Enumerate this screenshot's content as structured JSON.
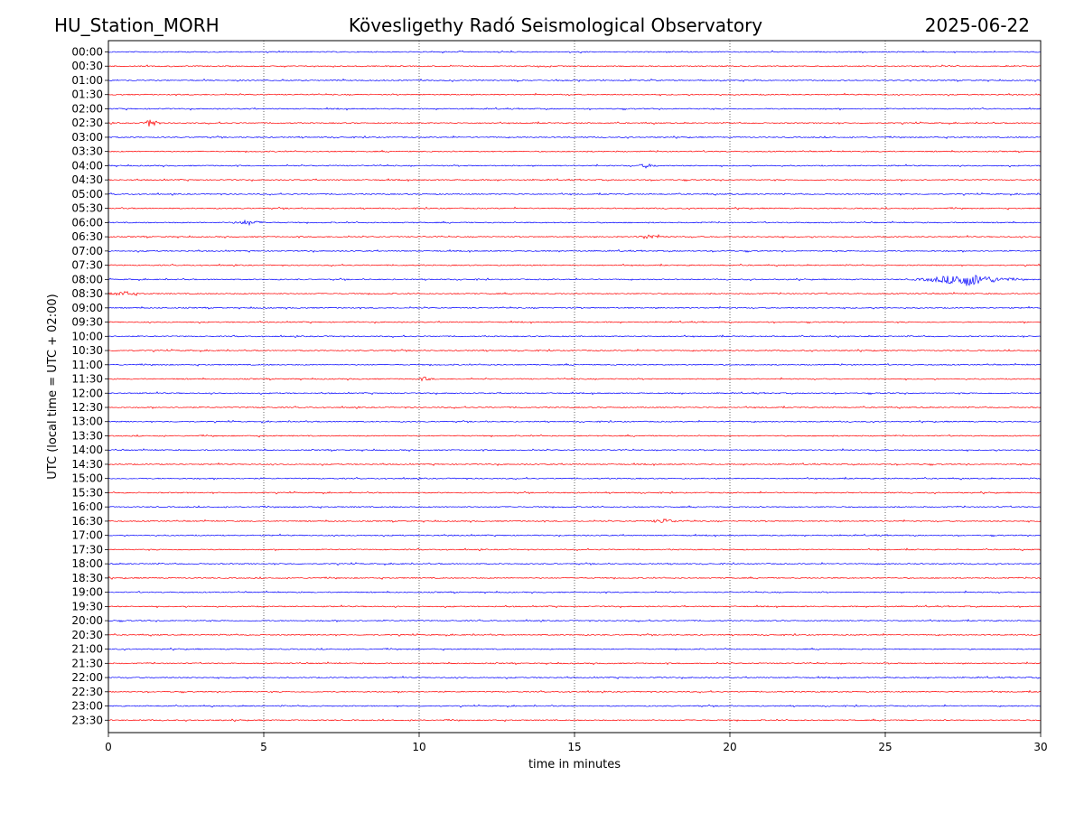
{
  "header": {
    "station": "HU_Station_MORH",
    "observatory": "Kövesligethy Radó Seismological Observatory",
    "date": "2025-06-22"
  },
  "chart_data": {
    "type": "line",
    "title": "Kövesligethy Radó Seismological Observatory",
    "xlabel": "time in minutes",
    "ylabel": "UTC (local time = UTC + 02:00)",
    "xlim": [
      0,
      30
    ],
    "x_ticks": [
      "0",
      "5",
      "10",
      "15",
      "20",
      "25",
      "30"
    ],
    "x_tick_values": [
      0,
      5,
      10,
      15,
      20,
      25,
      30
    ],
    "vertical_grid": "dotted at each 5-minute tick",
    "trace_colors": [
      "#0000ff",
      "#ff0000"
    ],
    "traces": [
      {
        "label": "00:00",
        "color": "#0000ff",
        "events": []
      },
      {
        "label": "00:30",
        "color": "#ff0000",
        "events": []
      },
      {
        "label": "01:00",
        "color": "#0000ff",
        "events": []
      },
      {
        "label": "01:30",
        "color": "#ff0000",
        "events": []
      },
      {
        "label": "02:00",
        "color": "#0000ff",
        "events": []
      },
      {
        "label": "02:30",
        "color": "#ff0000",
        "events": [
          {
            "minute": 1.4,
            "amplitude": 8,
            "duration": 0.3
          }
        ]
      },
      {
        "label": "03:00",
        "color": "#0000ff",
        "events": []
      },
      {
        "label": "03:30",
        "color": "#ff0000",
        "events": []
      },
      {
        "label": "04:00",
        "color": "#0000ff",
        "events": [
          {
            "minute": 17.3,
            "amplitude": 2,
            "duration": 0.6
          }
        ]
      },
      {
        "label": "04:30",
        "color": "#ff0000",
        "events": []
      },
      {
        "label": "05:00",
        "color": "#0000ff",
        "events": []
      },
      {
        "label": "05:30",
        "color": "#ff0000",
        "events": []
      },
      {
        "label": "06:00",
        "color": "#0000ff",
        "events": [
          {
            "minute": 4.5,
            "amplitude": 2.5,
            "duration": 0.8
          }
        ]
      },
      {
        "label": "06:30",
        "color": "#ff0000",
        "events": [
          {
            "minute": 17.4,
            "amplitude": 2.5,
            "duration": 0.7
          }
        ]
      },
      {
        "label": "07:00",
        "color": "#0000ff",
        "events": []
      },
      {
        "label": "07:30",
        "color": "#ff0000",
        "events": []
      },
      {
        "label": "08:00",
        "color": "#0000ff",
        "events": [
          {
            "minute": 27.6,
            "amplitude": 7,
            "duration": 2.2
          }
        ]
      },
      {
        "label": "08:30",
        "color": "#ff0000",
        "events": [
          {
            "minute": 0.5,
            "amplitude": 2.5,
            "duration": 0.8
          }
        ]
      },
      {
        "label": "09:00",
        "color": "#0000ff",
        "events": []
      },
      {
        "label": "09:30",
        "color": "#ff0000",
        "events": []
      },
      {
        "label": "10:00",
        "color": "#0000ff",
        "events": []
      },
      {
        "label": "10:30",
        "color": "#ff0000",
        "events": []
      },
      {
        "label": "11:00",
        "color": "#0000ff",
        "events": []
      },
      {
        "label": "11:30",
        "color": "#ff0000",
        "events": [
          {
            "minute": 10.2,
            "amplitude": 2,
            "duration": 0.4
          }
        ]
      },
      {
        "label": "12:00",
        "color": "#0000ff",
        "events": []
      },
      {
        "label": "12:30",
        "color": "#ff0000",
        "events": []
      },
      {
        "label": "13:00",
        "color": "#0000ff",
        "events": []
      },
      {
        "label": "13:30",
        "color": "#ff0000",
        "events": []
      },
      {
        "label": "14:00",
        "color": "#0000ff",
        "events": []
      },
      {
        "label": "14:30",
        "color": "#ff0000",
        "events": []
      },
      {
        "label": "15:00",
        "color": "#0000ff",
        "events": []
      },
      {
        "label": "15:30",
        "color": "#ff0000",
        "events": []
      },
      {
        "label": "16:00",
        "color": "#0000ff",
        "events": []
      },
      {
        "label": "16:30",
        "color": "#ff0000",
        "events": [
          {
            "minute": 17.9,
            "amplitude": 2.5,
            "duration": 0.7
          }
        ]
      },
      {
        "label": "17:00",
        "color": "#0000ff",
        "events": []
      },
      {
        "label": "17:30",
        "color": "#ff0000",
        "events": []
      },
      {
        "label": "18:00",
        "color": "#0000ff",
        "events": []
      },
      {
        "label": "18:30",
        "color": "#ff0000",
        "events": []
      },
      {
        "label": "19:00",
        "color": "#0000ff",
        "events": []
      },
      {
        "label": "19:30",
        "color": "#ff0000",
        "events": []
      },
      {
        "label": "20:00",
        "color": "#0000ff",
        "events": []
      },
      {
        "label": "20:30",
        "color": "#ff0000",
        "events": []
      },
      {
        "label": "21:00",
        "color": "#0000ff",
        "events": []
      },
      {
        "label": "21:30",
        "color": "#ff0000",
        "events": []
      },
      {
        "label": "22:00",
        "color": "#0000ff",
        "events": []
      },
      {
        "label": "22:30",
        "color": "#ff0000",
        "events": []
      },
      {
        "label": "23:00",
        "color": "#0000ff",
        "events": []
      },
      {
        "label": "23:30",
        "color": "#ff0000",
        "events": []
      }
    ]
  }
}
